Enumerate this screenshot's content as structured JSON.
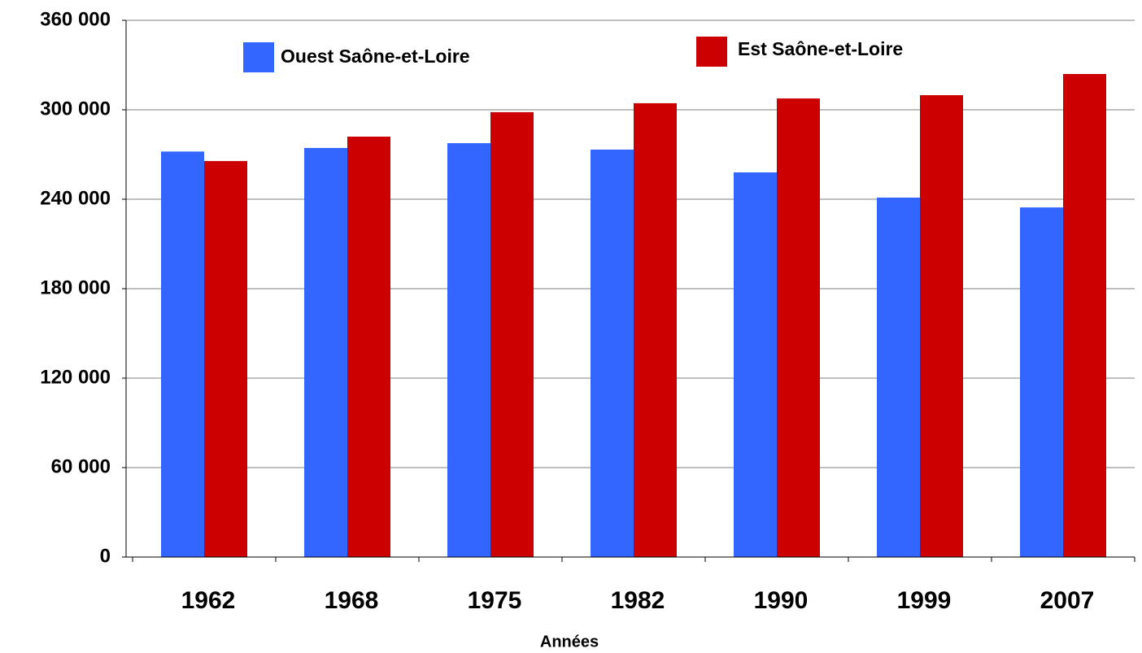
{
  "chart_data": {
    "type": "bar",
    "x_label": "Années",
    "categories": [
      "1962",
      "1968",
      "1975",
      "1982",
      "1990",
      "1999",
      "2007"
    ],
    "series": [
      {
        "name": "Ouest Saône-et-Loire",
        "color": "#3366ff",
        "values": [
          272000,
          274400,
          277600,
          273300,
          258000,
          241100,
          234500
        ]
      },
      {
        "name": "Est Saône-et-Loire",
        "color": "#cc0000",
        "values": [
          265600,
          282000,
          298400,
          304400,
          307600,
          309800,
          324000
        ]
      }
    ],
    "ylim": [
      0,
      360000
    ],
    "yticks": [
      0,
      {
        "value": 60000,
        "label": "60 000"
      },
      {
        "value": 120000,
        "label": "120 000"
      },
      {
        "value": 180000,
        "label": "180 000"
      },
      {
        "value": 240000,
        "label": "240 000"
      },
      {
        "value": 300000,
        "label": "300 000"
      },
      {
        "value": 360000,
        "label": "360 000"
      }
    ],
    "grid": true
  }
}
